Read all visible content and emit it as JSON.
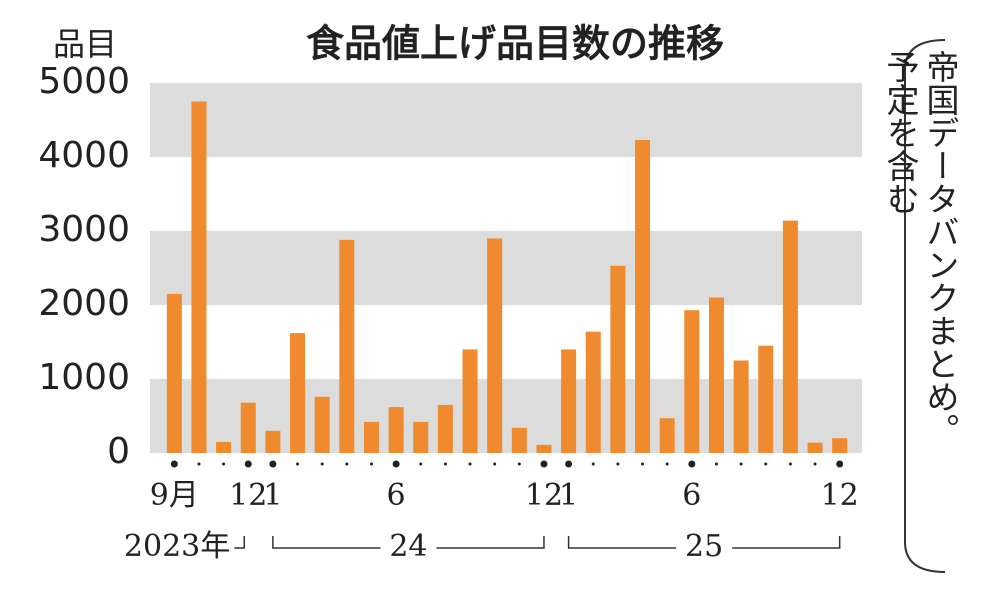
{
  "chart_data": {
    "type": "bar",
    "title": "食品値上げ品目数の推移",
    "y_unit": "品目",
    "note_lines": [
      "帝国データバンクまとめ。",
      "予定を含む"
    ],
    "categories": [
      "9月",
      null,
      null,
      "12",
      "1",
      null,
      null,
      null,
      null,
      "6",
      null,
      null,
      null,
      null,
      null,
      "12",
      "1",
      null,
      null,
      null,
      null,
      "6",
      null,
      null,
      null,
      null,
      null,
      "12"
    ],
    "year_groups": [
      "2023年",
      "24",
      "25"
    ],
    "values": [
      2150,
      4750,
      150,
      680,
      300,
      1620,
      760,
      2880,
      420,
      620,
      420,
      650,
      1400,
      2900,
      340,
      110,
      1400,
      1640,
      2530,
      4230,
      470,
      1930,
      2100,
      1250,
      1450,
      3140,
      140,
      200
    ],
    "color": "#ef8a2e",
    "band_color": "#dcdcdc",
    "ylim": [
      0,
      5000
    ],
    "yticks": [
      0,
      1000,
      2000,
      3000,
      4000,
      5000
    ],
    "banded_grid": true
  }
}
